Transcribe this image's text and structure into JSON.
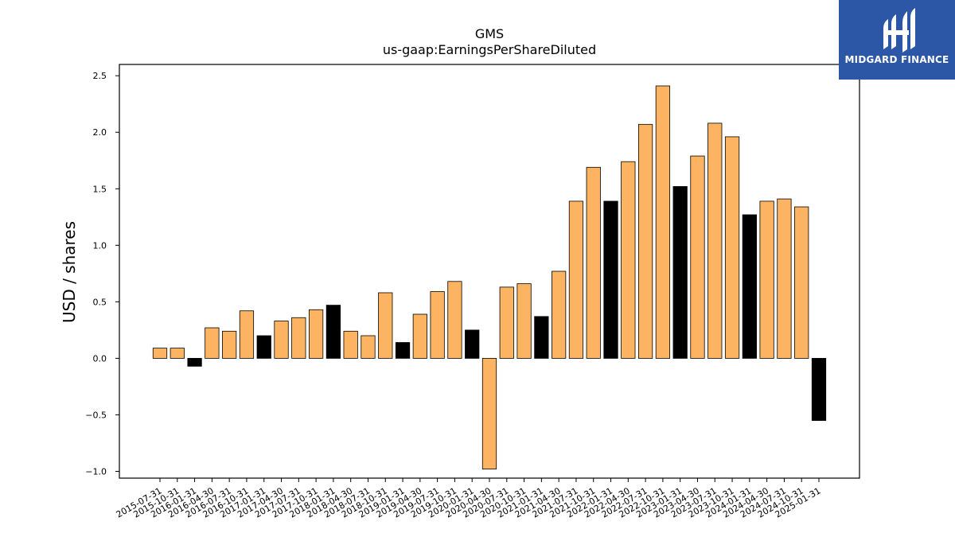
{
  "logo": {
    "text": "MIDGARD FINANCE",
    "background": "#2b57a6"
  },
  "chart_data": {
    "type": "bar",
    "title": "GMS",
    "subtitle": "us-gaap:EarningsPerShareDiluted",
    "xlabel": "",
    "ylabel": "USD / shares",
    "ylim": [
      -1.06,
      2.6
    ],
    "yticks": [
      -1.0,
      -0.5,
      0.0,
      0.5,
      1.0,
      1.5,
      2.0,
      2.5
    ],
    "colors": {
      "default": "#fdb462",
      "highlight": "#000000"
    },
    "categories": [
      "2015-07-31",
      "2015-10-31",
      "2016-01-31",
      "2016-04-30",
      "2016-07-31",
      "2016-10-31",
      "2017-01-31",
      "2017-04-30",
      "2017-07-31",
      "2017-10-31",
      "2018-01-31",
      "2018-04-30",
      "2018-07-31",
      "2018-10-31",
      "2019-01-31",
      "2019-04-30",
      "2019-07-31",
      "2019-10-31",
      "2020-01-31",
      "2020-04-30",
      "2020-07-31",
      "2020-10-31",
      "2021-01-31",
      "2021-04-30",
      "2021-07-31",
      "2021-10-31",
      "2022-01-31",
      "2022-04-30",
      "2022-07-31",
      "2022-10-31",
      "2023-01-31",
      "2023-04-30",
      "2023-07-31",
      "2023-10-31",
      "2024-01-31",
      "2024-04-30",
      "2024-07-31",
      "2024-10-31",
      "2025-01-31"
    ],
    "values": [
      0.09,
      0.09,
      -0.07,
      0.27,
      0.24,
      0.42,
      0.2,
      0.33,
      0.36,
      0.43,
      0.47,
      0.24,
      0.2,
      0.58,
      0.14,
      0.39,
      0.59,
      0.68,
      0.25,
      -0.98,
      0.63,
      0.66,
      0.37,
      0.77,
      1.39,
      1.69,
      1.39,
      1.74,
      2.07,
      2.41,
      1.52,
      1.79,
      2.08,
      1.96,
      1.27,
      1.39,
      1.41,
      1.34,
      -0.55
    ],
    "highlight": [
      false,
      false,
      true,
      false,
      false,
      false,
      true,
      false,
      false,
      false,
      true,
      false,
      false,
      false,
      true,
      false,
      false,
      false,
      true,
      false,
      false,
      false,
      true,
      false,
      false,
      false,
      true,
      false,
      false,
      false,
      true,
      false,
      false,
      false,
      true,
      false,
      false,
      false,
      true
    ]
  }
}
